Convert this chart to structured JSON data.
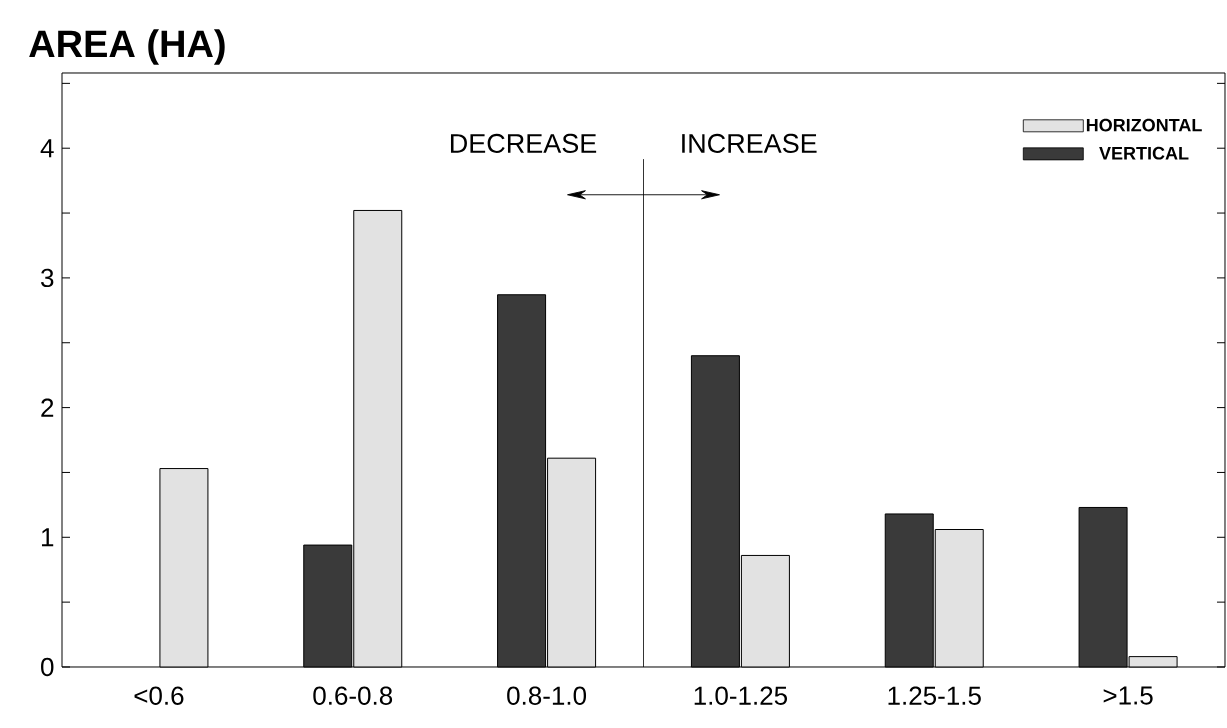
{
  "chart_data": {
    "type": "bar",
    "title": "AREA (HA)",
    "categories": [
      "<0.6",
      "0.6-0.8",
      "0.8-1.0",
      "1.0-1.25",
      "1.25-1.5",
      ">1.5"
    ],
    "series": [
      {
        "name": "VERTICAL",
        "color": "#3a3a3a",
        "values": [
          null,
          0.94,
          2.87,
          2.4,
          1.18,
          1.23
        ]
      },
      {
        "name": "HORIZONTAL",
        "color": "#e2e2e2",
        "values": [
          1.53,
          3.52,
          1.61,
          0.86,
          1.06,
          0.08
        ]
      }
    ],
    "ylim": [
      0,
      4.58
    ],
    "yticks": [
      0,
      {
        "value": 0.5,
        "label": null
      },
      1,
      {
        "value": 1.5,
        "label": null
      },
      2,
      {
        "value": 2.5,
        "label": null
      },
      3,
      {
        "value": 3.5,
        "label": null
      },
      4,
      {
        "value": 4.5,
        "label": null
      }
    ],
    "annotations": [
      "DECREASE",
      "INCREASE"
    ],
    "grid": false,
    "legend": "top right"
  }
}
